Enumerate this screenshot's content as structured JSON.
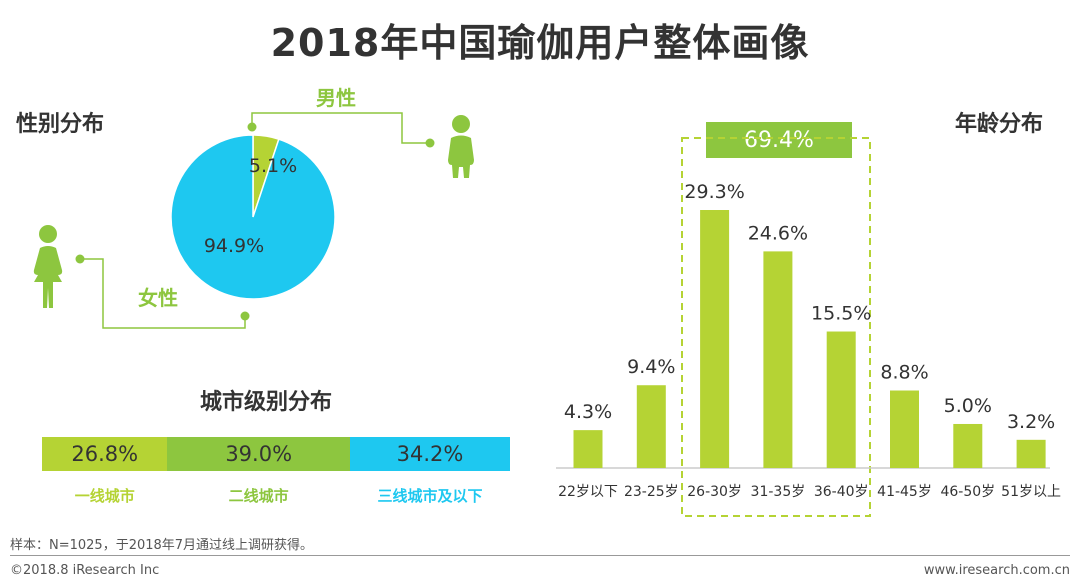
{
  "page": {
    "title": "2018年中国瑜伽用户整体画像",
    "footnote": "样本：N=1025，于2018年7月通过线上调研获得。",
    "copyright": "©2018.8 iResearch Inc",
    "website": "www.iresearch.com.cn"
  },
  "colors": {
    "green": "#b5d334",
    "dark_green": "#8dc63f",
    "blue": "#1ec8f0",
    "text": "#333333"
  },
  "icons": [
    "male-person-icon",
    "female-person-icon"
  ],
  "gender": {
    "heading": "性别分布",
    "male_label": "男性",
    "female_label": "女性",
    "male_pct": "5.1%",
    "female_pct": "94.9%"
  },
  "city": {
    "heading": "城市级别分布",
    "segments": [
      {
        "label": "一线城市",
        "pct": "26.8%",
        "value": 26.8,
        "color": "#b5d334"
      },
      {
        "label": "二线城市",
        "pct": "39.0%",
        "value": 39.0,
        "color": "#8dc63f"
      },
      {
        "label": "三线城市及以下",
        "pct": "34.2%",
        "value": 34.2,
        "color": "#1ec8f0"
      }
    ]
  },
  "age": {
    "heading": "年龄分布",
    "highlight": "69.4%"
  },
  "chart_data": [
    {
      "type": "pie",
      "categories": [
        "男性",
        "女性"
      ],
      "values": [
        5.1,
        94.9
      ],
      "colors": [
        "#b5d334",
        "#1ec8f0"
      ],
      "title": "性别分布"
    },
    {
      "type": "bar",
      "title": "城市级别分布",
      "orientation": "horizontal-stacked",
      "categories": [
        "一线城市",
        "二线城市",
        "三线城市及以下"
      ],
      "values": [
        26.8,
        39.0,
        34.2
      ]
    },
    {
      "type": "bar",
      "title": "年龄分布",
      "categories": [
        "22岁以下",
        "23-25岁",
        "26-30岁",
        "31-35岁",
        "36-40岁",
        "41-45岁",
        "46-50岁",
        "51岁以上"
      ],
      "values": [
        4.3,
        9.4,
        29.3,
        24.6,
        15.5,
        8.8,
        5.0,
        3.2
      ],
      "value_labels": [
        "4.3%",
        "9.4%",
        "29.3%",
        "24.6%",
        "15.5%",
        "8.8%",
        "5.0%",
        "3.2%"
      ],
      "highlight_categories": [
        "26-30岁",
        "31-35岁",
        "36-40岁"
      ],
      "highlight_label": "69.4%",
      "color": "#b5d334"
    }
  ]
}
